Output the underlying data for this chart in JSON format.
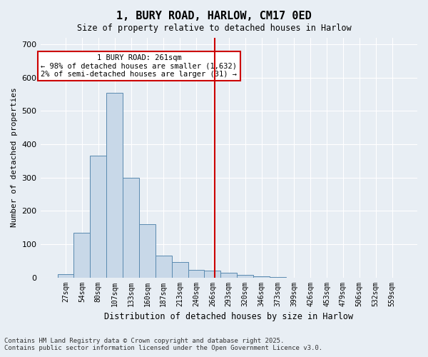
{
  "title": "1, BURY ROAD, HARLOW, CM17 0ED",
  "subtitle": "Size of property relative to detached houses in Harlow",
  "xlabel": "Distribution of detached houses by size in Harlow",
  "ylabel": "Number of detached properties",
  "property_size": 261,
  "property_line_label": "1 BURY ROAD: 261sqm",
  "annotation_line1": "← 98% of detached houses are smaller (1,632)",
  "annotation_line2": "2% of semi-detached houses are larger (31) →",
  "bin_labels": [
    "27sqm",
    "54sqm",
    "80sqm",
    "107sqm",
    "133sqm",
    "160sqm",
    "187sqm",
    "213sqm",
    "240sqm",
    "266sqm",
    "293sqm",
    "320sqm",
    "346sqm",
    "373sqm",
    "399sqm",
    "426sqm",
    "453sqm",
    "479sqm",
    "506sqm",
    "532sqm",
    "559sqm"
  ],
  "bar_values": [
    10,
    135,
    365,
    555,
    298,
    160,
    65,
    47,
    22,
    20,
    13,
    8,
    4,
    1,
    0,
    0,
    0,
    0,
    0,
    0,
    0
  ],
  "bar_color": "#c8d8e8",
  "bar_edge_color": "#5a8ab0",
  "vline_x_index": 9.15,
  "vline_color": "#cc0000",
  "background_color": "#e8eef4",
  "grid_color": "#ffffff",
  "ylim": [
    0,
    720
  ],
  "yticks": [
    0,
    100,
    200,
    300,
    400,
    500,
    600,
    700
  ],
  "footer_line1": "Contains HM Land Registry data © Crown copyright and database right 2025.",
  "footer_line2": "Contains public sector information licensed under the Open Government Licence v3.0."
}
